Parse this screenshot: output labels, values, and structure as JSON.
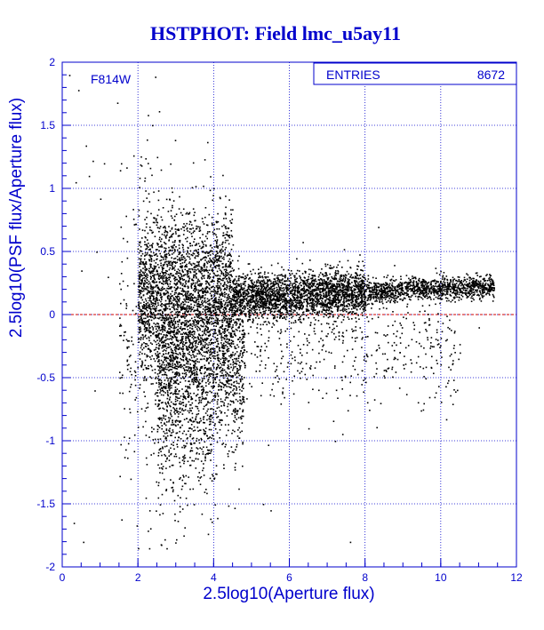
{
  "chart_data": {
    "type": "scatter",
    "title": "HSTPHOT: Field lmc_u5ay11",
    "annotation": "F814W",
    "stats_box": {
      "label": "ENTRIES",
      "value": "8672"
    },
    "xlabel": "2.5log10(Aperture flux)",
    "ylabel": "2.5log10(PSF flux/Aperture flux)",
    "xlim": [
      0,
      12
    ],
    "ylim": [
      -2,
      2
    ],
    "xticks": [
      "0",
      "2",
      "4",
      "6",
      "8",
      "10",
      "12"
    ],
    "yticks": [
      "-2",
      "-1.5",
      "-1",
      "-0.5",
      "0",
      "0.5",
      "1",
      "1.5",
      "2"
    ],
    "grid": true,
    "reference_line": {
      "y": 0
    },
    "colors": {
      "title": "#0000cc",
      "axes": "#0000cc",
      "grid": "#0000cc",
      "points": "#000000",
      "reference_line": "#cc0000"
    },
    "points": [
      [
        0.18,
        1.9
      ],
      [
        0.42,
        1.78
      ],
      [
        1.45,
        1.68
      ],
      [
        0.62,
        1.34
      ],
      [
        0.35,
        1.05
      ],
      [
        0.8,
        1.22
      ],
      [
        1.1,
        1.2
      ],
      [
        1.55,
        1.2
      ],
      [
        2.5,
        1.25
      ],
      [
        2.6,
        1.15
      ],
      [
        0.7,
        1.1
      ],
      [
        1.0,
        0.92
      ],
      [
        0.5,
        0.35
      ],
      [
        0.9,
        0.5
      ],
      [
        1.2,
        0.3
      ],
      [
        1.6,
        -0.2
      ],
      [
        0.3,
        -1.65
      ],
      [
        0.55,
        -1.8
      ],
      [
        1.8,
        -1.3
      ],
      [
        2.0,
        -1.85
      ],
      [
        2.6,
        -1.82
      ],
      [
        2.7,
        -1.78
      ],
      [
        3.2,
        -1.75
      ],
      [
        5.3,
        -1.5
      ],
      [
        5.5,
        -1.55
      ],
      [
        7.6,
        -1.8
      ],
      [
        2.3,
        -1.55
      ],
      [
        2.2,
        -1.45
      ],
      [
        1.9,
        -0.95
      ],
      [
        0.85,
        -0.6
      ],
      [
        10.5,
        -0.3
      ],
      [
        11.0,
        -0.1
      ],
      [
        9.8,
        -0.25
      ],
      [
        7.9,
        -0.55
      ],
      [
        8.4,
        -0.7
      ],
      [
        9.2,
        -0.45
      ],
      [
        6.5,
        -0.9
      ],
      [
        7.2,
        -1.0
      ],
      [
        6.9,
        -0.35
      ],
      [
        3.0,
        0.8
      ],
      [
        3.5,
        0.75
      ],
      [
        4.0,
        0.72
      ]
    ],
    "clusters": [
      {
        "x_range": [
          2.0,
          4.5
        ],
        "y_center": 0.15,
        "y_sigma": 0.32,
        "count": 2600,
        "slope": 0.0
      },
      {
        "x_range": [
          4.5,
          8.0
        ],
        "y_center": 0.14,
        "y_sigma": 0.09,
        "count": 2400,
        "slope": 0.012
      },
      {
        "x_range": [
          8.0,
          11.4
        ],
        "y_center": 0.19,
        "y_sigma": 0.045,
        "count": 1200,
        "slope": 0.01
      },
      {
        "x_range": [
          2.5,
          4.8
        ],
        "y_center": -0.45,
        "y_sigma": 0.35,
        "count": 1500,
        "slope": 0.0
      },
      {
        "x_range": [
          4.5,
          10.5
        ],
        "y_center": -0.25,
        "y_sigma": 0.25,
        "count": 500,
        "slope": 0.0
      },
      {
        "x_range": [
          1.5,
          3.0
        ],
        "y_center": -0.2,
        "y_sigma": 0.7,
        "count": 300,
        "slope": 0.0
      },
      {
        "x_range": [
          2.5,
          4.0
        ],
        "y_center": -1.1,
        "y_sigma": 0.25,
        "count": 180,
        "slope": 0.0
      }
    ]
  }
}
